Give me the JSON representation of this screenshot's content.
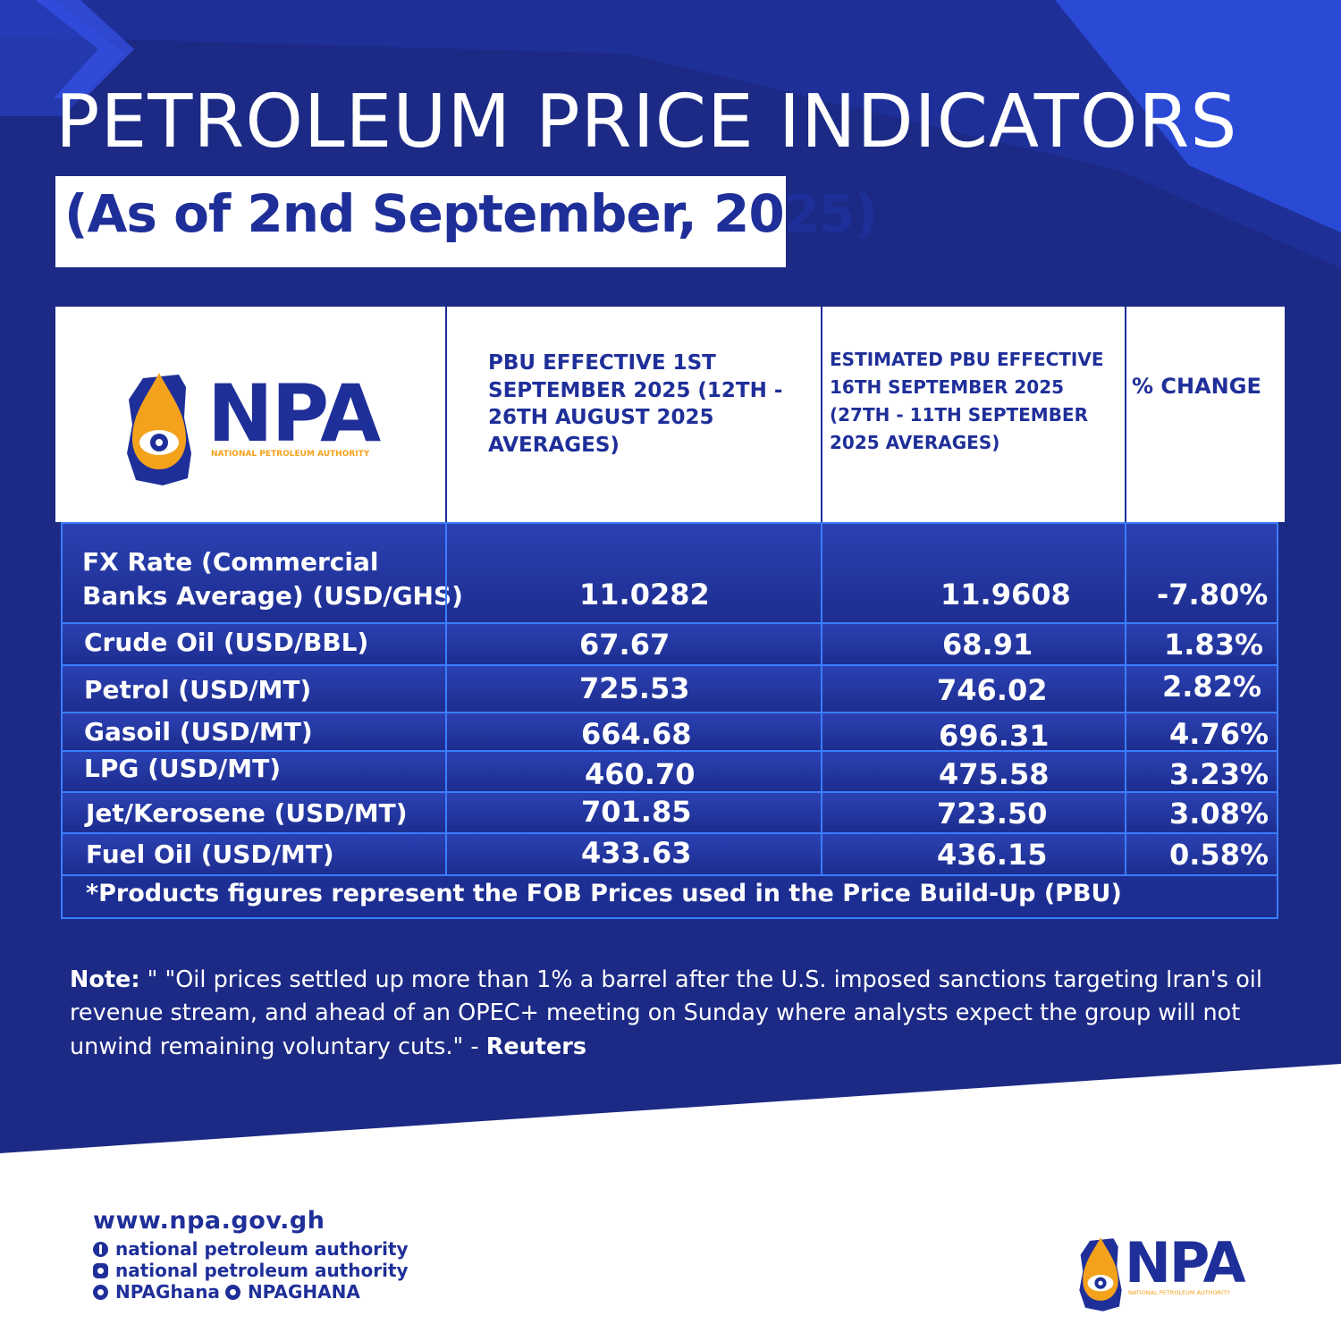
{
  "header": {
    "title": "PETROLEUM PRICE INDICATORS",
    "subtitle": "(As of  2nd September, 2025)"
  },
  "logo": {
    "text": "NPA",
    "caption": "NATIONAL PETROLEUM AUTHORITY"
  },
  "table": {
    "columns": [
      "PBU EFFECTIVE 1ST SEPTEMBER 2025 (12TH - 26TH AUGUST 2025 AVERAGES)",
      "ESTIMATED PBU EFFECTIVE 16TH SEPTEMBER 2025 (27TH - 11TH SEPTEMBER 2025 AVERAGES)",
      "% CHANGE"
    ],
    "col1_lines": [
      "PBU EFFECTIVE 1ST",
      "SEPTEMBER 2025 (12TH -",
      "26TH AUGUST 2025",
      "AVERAGES)"
    ],
    "col2_lines": [
      "ESTIMATED PBU EFFECTIVE",
      "16TH SEPTEMBER 2025",
      "(27TH - 11TH SEPTEMBER",
      "2025 AVERAGES)"
    ],
    "rows": [
      {
        "label_line1": "FX Rate (Commercial",
        "label_line2": "Banks Average) (USD/GHS)",
        "current": "11.0282",
        "estimated": "11.9608",
        "change": "-7.80%"
      },
      {
        "label": "Crude Oil (USD/BBL)",
        "current": "67.67",
        "estimated": "68.91",
        "change": "1.83%"
      },
      {
        "label": "Petrol (USD/MT)",
        "current": "725.53",
        "estimated": "746.02",
        "change": "2.82%"
      },
      {
        "label": "Gasoil (USD/MT)",
        "current": "664.68",
        "estimated": "696.31",
        "change": "4.76%"
      },
      {
        "label": "LPG (USD/MT)",
        "current": "460.70",
        "estimated": "475.58",
        "change": "3.23%"
      },
      {
        "label": "Jet/Kerosene (USD/MT)",
        "current": "701.85",
        "estimated": "723.50",
        "change": "3.08%"
      },
      {
        "label": "Fuel Oil (USD/MT)",
        "current": "433.63",
        "estimated": "436.15",
        "change": "0.58%"
      }
    ],
    "footnote": "*Products figures represent the FOB Prices used in the Price Build-Up (PBU)"
  },
  "note": {
    "label": "Note:",
    "text": " \" \"Oil prices settled up more than 1% a barrel after the U.S. imposed sanctions targeting Iran's oil revenue stream, and ahead of an OPEC+ meeting on Sunday where analysts expect the group will not unwind remaining voluntary cuts.\" - ",
    "source": "Reuters"
  },
  "footer": {
    "website": "www.npa.gov.gh",
    "facebook": "national petroleum authority",
    "instagram": "national petroleum authority",
    "twitter": "NPAGhana",
    "tiktok": "NPAGHANA"
  },
  "colors": {
    "background": "#1c2a86",
    "brand_blue": "#1f2f99",
    "accent_orange": "#f4a21c",
    "table_border": "#3b7dff"
  },
  "icons": [
    "facebook-icon",
    "instagram-icon",
    "twitter-icon",
    "tiktok-icon",
    "npa-drop-eye-icon"
  ]
}
